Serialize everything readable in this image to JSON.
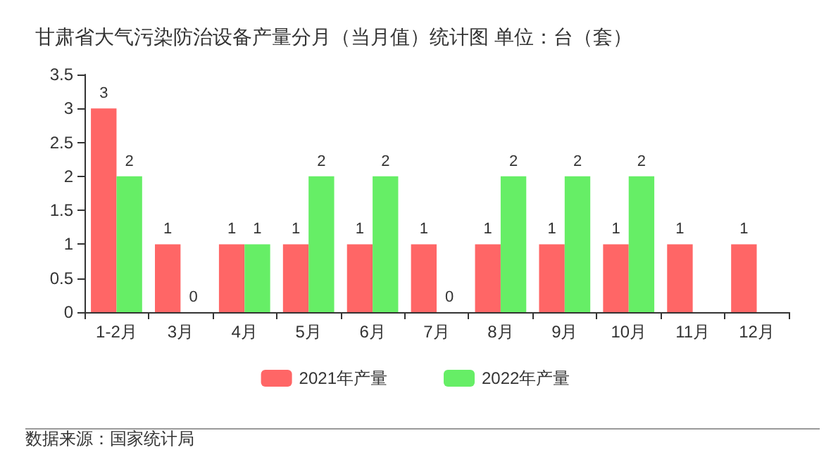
{
  "chart_data": {
    "type": "bar",
    "title": "甘肃省大气污染防治设备产量分月（当月值）统计图 单位：台（套）",
    "categories": [
      "1-2月",
      "3月",
      "4月",
      "5月",
      "6月",
      "7月",
      "8月",
      "9月",
      "10月",
      "11月",
      "12月"
    ],
    "series": [
      {
        "name": "2021年产量",
        "color": "#ff6666",
        "values": [
          3,
          1,
          1,
          1,
          1,
          1,
          1,
          1,
          1,
          1,
          1
        ]
      },
      {
        "name": "2022年产量",
        "color": "#66ee66",
        "values": [
          2,
          0,
          1,
          2,
          2,
          0,
          2,
          2,
          2,
          null,
          null
        ]
      }
    ],
    "ylim": [
      0,
      3.5
    ],
    "yticks": [
      0,
      0.5,
      1,
      1.5,
      2,
      2.5,
      3,
      3.5
    ],
    "grid": false,
    "legend": "bottom",
    "data_labels": true,
    "annotations": [
      "数据来源：国家统计局"
    ]
  }
}
